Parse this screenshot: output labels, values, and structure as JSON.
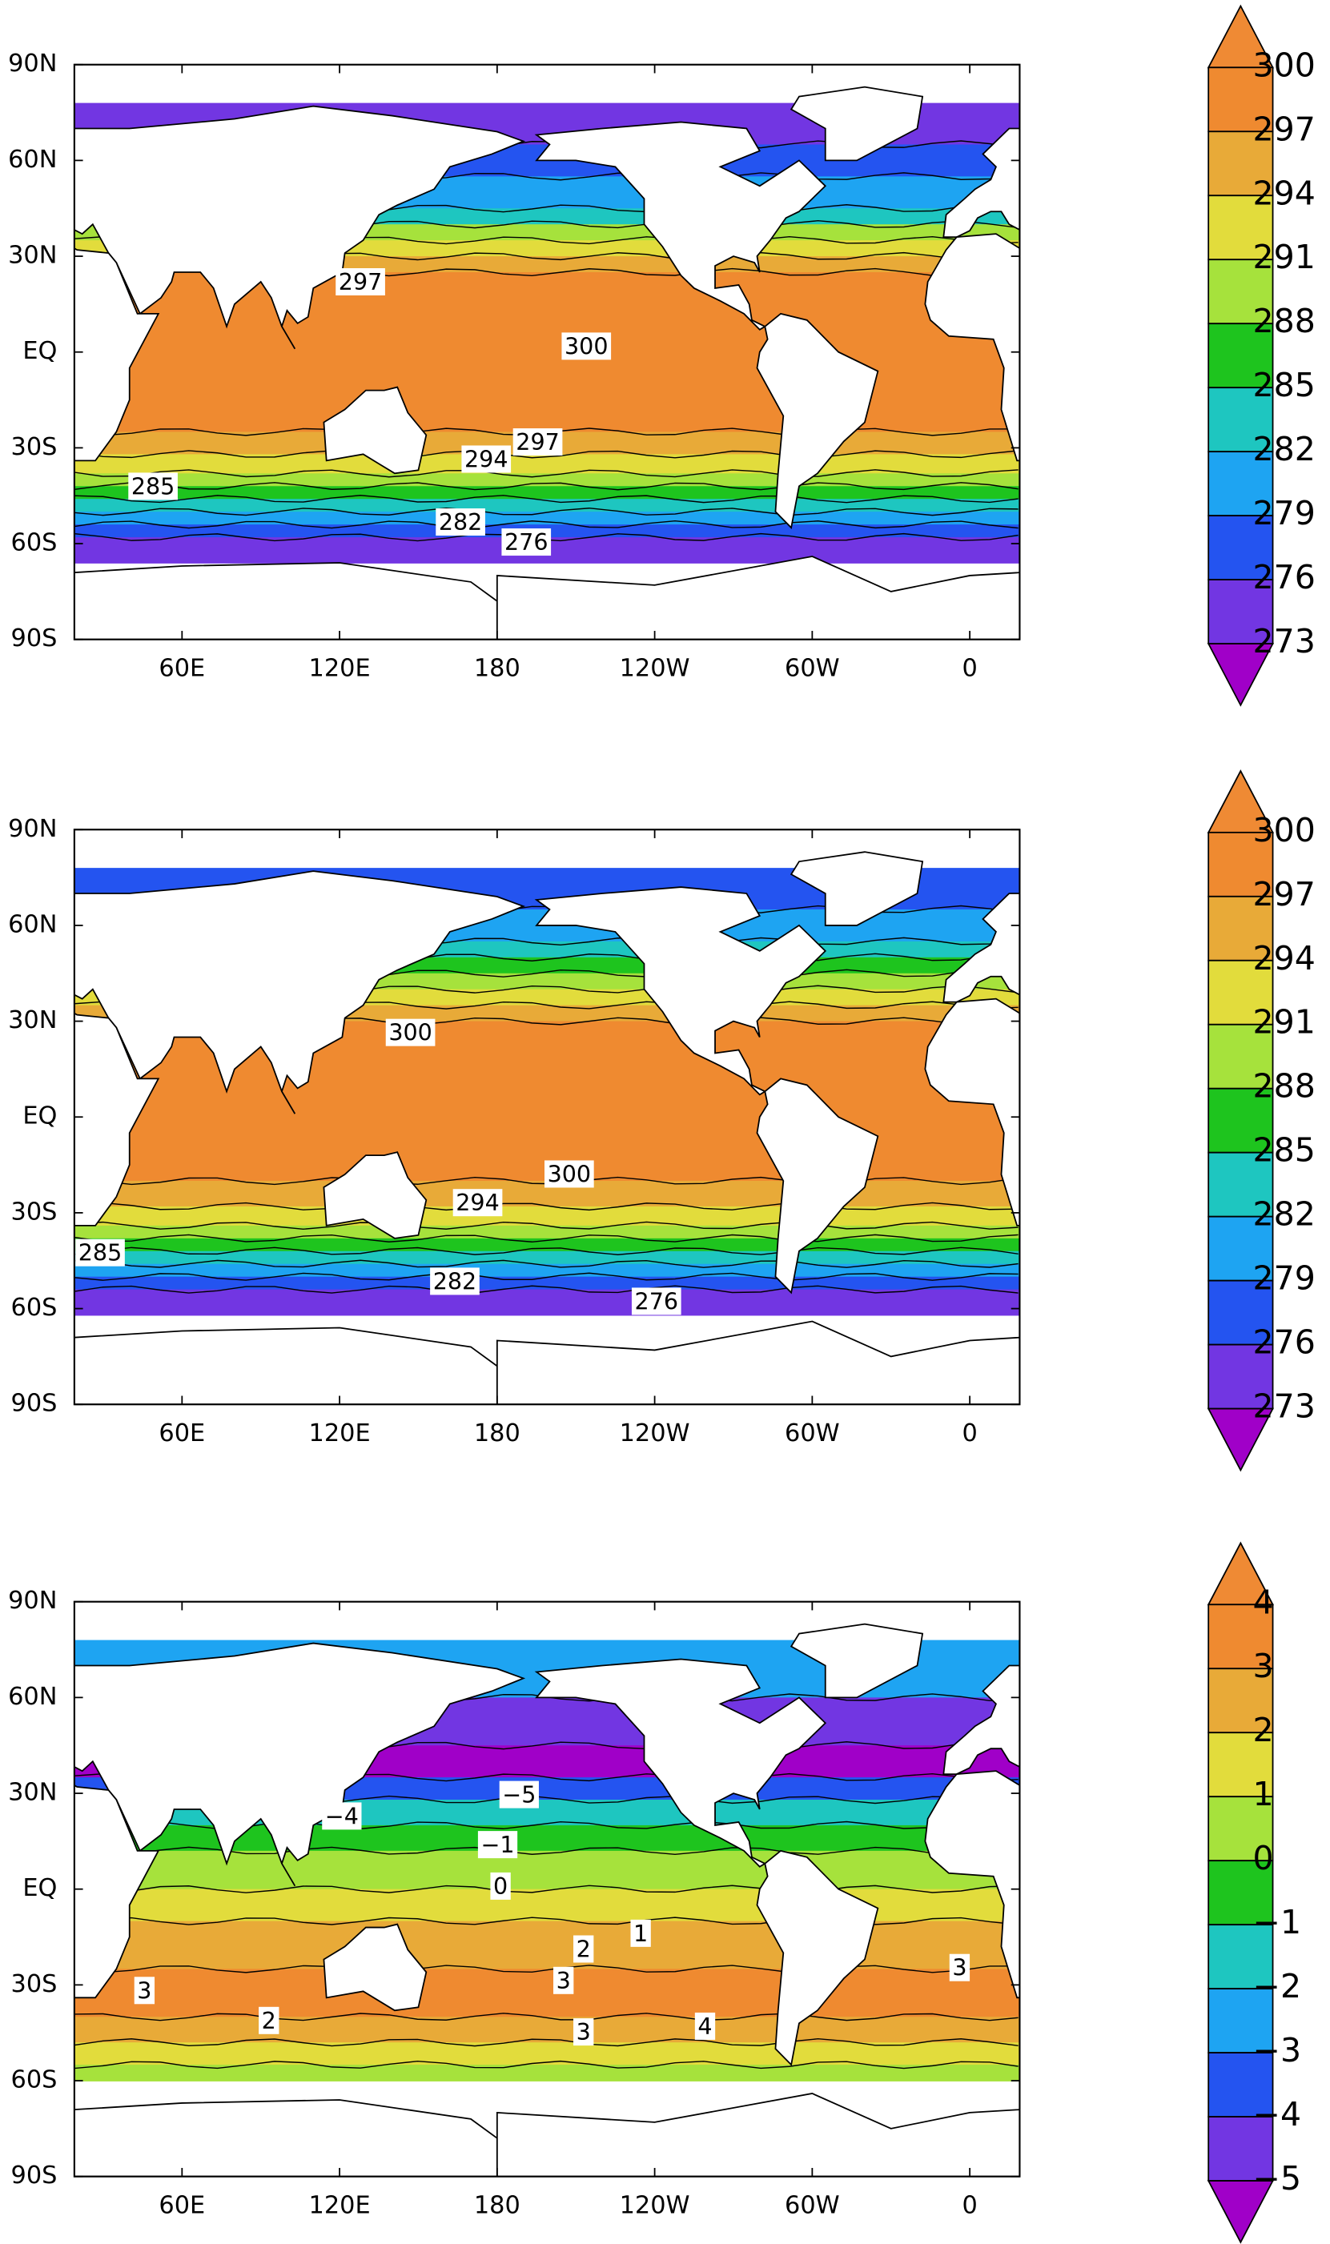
{
  "panels": [
    {
      "lat_ticks": [
        "90N",
        "60N",
        "30N",
        "EQ",
        "30S",
        "60S",
        "90S"
      ],
      "lon_ticks": [
        "60E",
        "120E",
        "180",
        "120W",
        "60W",
        "0"
      ],
      "colorbar": {
        "labels": [
          "300",
          "297",
          "294",
          "291",
          "288",
          "285",
          "282",
          "279",
          "276",
          "273"
        ],
        "colors": [
          "#ef8a34",
          "#ef8a30",
          "#e8aa38",
          "#e2dc3c",
          "#a6e23c",
          "#1ec41e",
          "#1ec6c0",
          "#1ea4f2",
          "#2454f0",
          "#7236e2",
          "#a000c8"
        ]
      },
      "contour_labels": [
        "297",
        "300",
        "297",
        "294",
        "285",
        "282",
        "276"
      ]
    },
    {
      "lat_ticks": [
        "90N",
        "60N",
        "30N",
        "EQ",
        "30S",
        "60S",
        "90S"
      ],
      "lon_ticks": [
        "60E",
        "120E",
        "180",
        "120W",
        "60W",
        "0"
      ],
      "colorbar": {
        "labels": [
          "300",
          "297",
          "294",
          "291",
          "288",
          "285",
          "282",
          "279",
          "276",
          "273"
        ],
        "colors": [
          "#ef8a34",
          "#ef8a30",
          "#e8aa38",
          "#e2dc3c",
          "#a6e23c",
          "#1ec41e",
          "#1ec6c0",
          "#1ea4f2",
          "#2454f0",
          "#7236e2",
          "#a000c8"
        ]
      },
      "contour_labels": [
        "300",
        "300",
        "294",
        "285",
        "282",
        "276"
      ]
    },
    {
      "lat_ticks": [
        "90N",
        "60N",
        "30N",
        "EQ",
        "30S",
        "60S",
        "90S"
      ],
      "lon_ticks": [
        "60E",
        "120E",
        "180",
        "120W",
        "60W",
        "0"
      ],
      "colorbar": {
        "labels": [
          "4",
          "3",
          "2",
          "1",
          "0",
          "−1",
          "−2",
          "−3",
          "−4",
          "−5"
        ],
        "colors": [
          "#ef8a34",
          "#ef8a30",
          "#e8aa38",
          "#e2dc3c",
          "#a6e23c",
          "#1ec41e",
          "#1ec6c0",
          "#1ea4f2",
          "#2454f0",
          "#7236e2",
          "#a000c8"
        ]
      },
      "contour_labels": [
        "−5",
        "−4",
        "−1",
        "0",
        "1",
        "2",
        "3",
        "3",
        "2",
        "3",
        "4",
        "3"
      ]
    }
  ]
}
